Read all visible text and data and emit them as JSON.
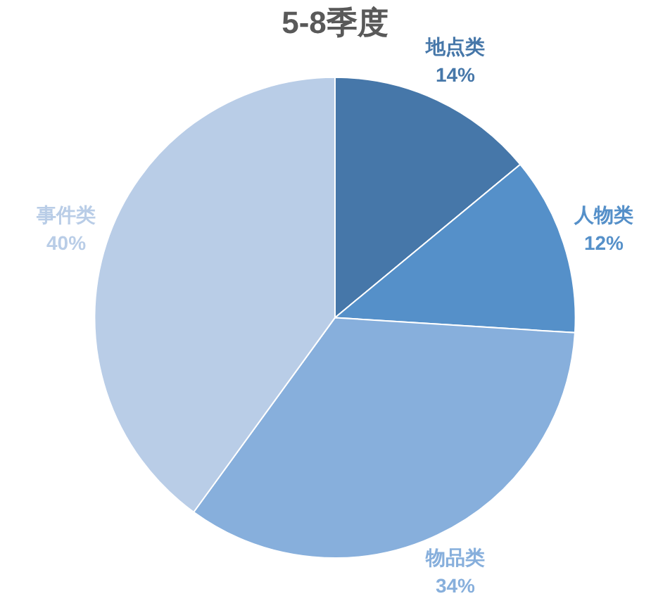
{
  "chart_data": {
    "type": "pie",
    "title": "5-8季度",
    "categories": [
      "地点类",
      "人物类",
      "物品类",
      "事件类"
    ],
    "values": [
      14,
      12,
      34,
      40
    ],
    "value_labels": [
      "14%",
      "12%",
      "34%",
      "40%"
    ],
    "colors": [
      "#4677a9",
      "#5590c9",
      "#87afdc",
      "#b9cde7"
    ],
    "legend": false
  }
}
